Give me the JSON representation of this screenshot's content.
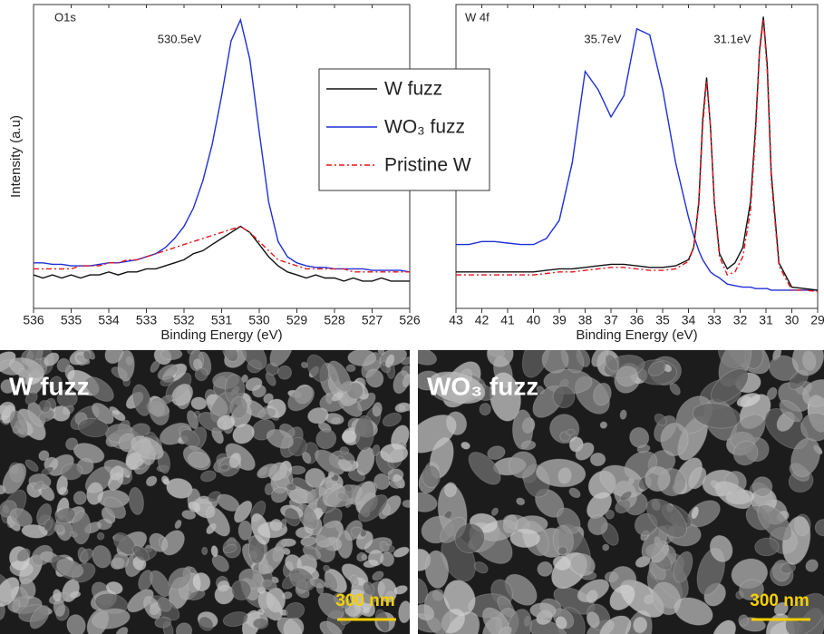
{
  "chart_data": [
    {
      "type": "line",
      "ylabel": "Intensity (a.u)",
      "xlabel": "Binding Energy (eV)",
      "annotations": [
        "O1s",
        "530.5eV"
      ],
      "xlim": [
        536,
        526
      ],
      "xticks": [
        536,
        535,
        534,
        533,
        532,
        531,
        530,
        529,
        528,
        527,
        526
      ],
      "ylim": [
        0,
        100
      ],
      "x": [
        536,
        535.75,
        535.5,
        535.25,
        535,
        534.75,
        534.5,
        534.25,
        534,
        533.75,
        533.5,
        533.25,
        533,
        532.75,
        532.5,
        532.25,
        532,
        531.75,
        531.5,
        531.25,
        531,
        530.75,
        530.5,
        530.25,
        530,
        529.75,
        529.5,
        529.25,
        529,
        528.75,
        528.5,
        528.25,
        528,
        527.75,
        527.5,
        527.25,
        527,
        526.75,
        526.5,
        526.25,
        526
      ],
      "series": [
        {
          "name": "W fuzz",
          "color": "#111111",
          "dash": "solid",
          "values": [
            11,
            10,
            11,
            10,
            11,
            10,
            11,
            11,
            12,
            11,
            12,
            12,
            13,
            13,
            14,
            15,
            16,
            18,
            19,
            21,
            23,
            25,
            27,
            25,
            21,
            17,
            14,
            12,
            11,
            10,
            11,
            10,
            10,
            9,
            10,
            9,
            9,
            10,
            9,
            9,
            9
          ]
        },
        {
          "name": "WO₃ fuzz",
          "color": "#1f2fd6",
          "dash": "solid",
          "values": [
            15,
            15,
            14.5,
            14.5,
            14,
            14,
            14,
            14.5,
            15,
            15,
            15.5,
            16,
            17,
            18,
            20,
            23,
            27,
            33,
            42,
            54,
            70,
            88,
            95,
            82,
            58,
            35,
            22,
            17,
            15,
            14,
            13.5,
            13.5,
            13,
            13,
            13,
            13,
            12.5,
            12.5,
            12.5,
            12.5,
            12
          ]
        },
        {
          "name": "Pristine W",
          "color": "#e8141c",
          "dash": "dashdot",
          "values": [
            13,
            13,
            13,
            13,
            13,
            14,
            14,
            14,
            15,
            15,
            16,
            16,
            17,
            18,
            19,
            20,
            21,
            22,
            23,
            24,
            25,
            26,
            27,
            25,
            22,
            19,
            16,
            15,
            14,
            13,
            13,
            13,
            13,
            13,
            12,
            12,
            12,
            12,
            12,
            12,
            12
          ]
        }
      ]
    },
    {
      "type": "line",
      "xlabel": "Binding Energy (eV)",
      "annotations": [
        "W 4f",
        "35.7eV",
        "31.1eV"
      ],
      "xlim": [
        43,
        29
      ],
      "xticks": [
        43,
        42,
        41,
        40,
        39,
        38,
        37,
        36,
        35,
        34,
        33,
        32,
        31,
        30,
        29
      ],
      "ylim": [
        0,
        100
      ],
      "x": [
        43,
        42.5,
        42,
        41.5,
        41,
        40.5,
        40,
        39.5,
        39,
        38.5,
        38,
        37.5,
        37,
        36.5,
        36,
        35.5,
        35,
        34.5,
        34,
        33.8,
        33.6,
        33.45,
        33.3,
        33.15,
        33.0,
        32.8,
        32.5,
        32.2,
        31.9,
        31.6,
        31.4,
        31.25,
        31.1,
        30.95,
        30.8,
        30.5,
        30,
        29.5,
        29
      ],
      "series": [
        {
          "color": "#1f2fd6",
          "dash": "solid",
          "values": [
            21,
            21,
            22,
            22,
            21.5,
            21,
            21,
            23,
            29,
            48,
            78,
            72,
            63,
            70,
            92,
            90,
            72,
            48,
            30,
            24,
            19,
            16,
            14,
            12,
            11,
            10,
            8,
            7.5,
            7,
            7,
            6.5,
            6.5,
            6.5,
            6.5,
            6,
            6,
            6,
            6,
            6
          ]
        },
        {
          "color": "#111111",
          "dash": "solid",
          "values": [
            12,
            12,
            12,
            12,
            12,
            12,
            12,
            12.5,
            13,
            13,
            13.5,
            14,
            14.5,
            14.5,
            14,
            13.5,
            13.5,
            14,
            16,
            20,
            35,
            62,
            76,
            60,
            35,
            18,
            13,
            15,
            20,
            35,
            60,
            85,
            96,
            80,
            45,
            15,
            7,
            6.5,
            6
          ]
        },
        {
          "color": "#e8141c",
          "dash": "dashdot",
          "values": [
            11,
            11,
            11,
            11,
            11,
            11,
            11,
            11.5,
            12,
            12,
            12.5,
            13,
            13.5,
            13.5,
            13,
            12.5,
            12.5,
            13,
            15.5,
            20,
            34,
            60,
            75,
            60,
            35,
            17,
            11,
            12,
            17,
            32,
            58,
            84,
            95,
            78,
            43,
            14,
            6,
            6,
            5.5
          ]
        }
      ]
    }
  ],
  "sem_images": [
    {
      "label": "W fuzz",
      "scale_bar": "300 nm"
    },
    {
      "label": "WO₃ fuzz",
      "scale_bar": "300 nm"
    }
  ]
}
